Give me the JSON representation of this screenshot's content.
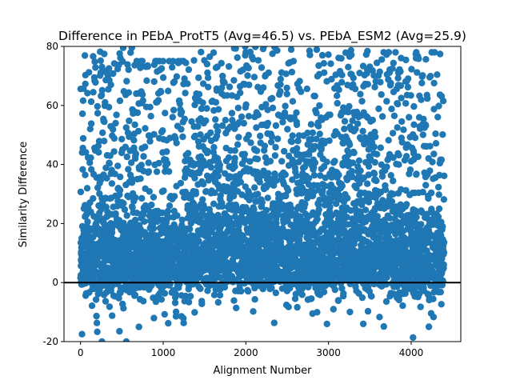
{
  "chart_data": {
    "type": "scatter",
    "title": "Difference in PEbA_ProtT5 (Avg=46.5) vs. PEbA_ESM2 (Avg=25.9)",
    "xlabel": "Alignment Number",
    "ylabel": "Similarity Difference",
    "xlim": [
      -200,
      4600
    ],
    "ylim": [
      -20,
      80
    ],
    "xticks": [
      0,
      1000,
      2000,
      3000,
      4000
    ],
    "yticks": [
      -20,
      0,
      20,
      40,
      60,
      80
    ],
    "grid": false,
    "legend": "none",
    "point_color": "#1f77b4",
    "reference_line": {
      "y": 0,
      "color": "#000000"
    },
    "n_points": 4400,
    "segments": [
      {
        "x_range": [
          0,
          650
        ],
        "mean": 14,
        "spread": 20,
        "min": -20,
        "max": 80
      },
      {
        "x_range": [
          650,
          1250
        ],
        "mean": 12,
        "spread": 18,
        "min": -15,
        "max": 75
      },
      {
        "x_range": [
          1250,
          2500
        ],
        "mean": 22,
        "spread": 20,
        "min": -16,
        "max": 80
      },
      {
        "x_range": [
          2500,
          3600
        ],
        "mean": 24,
        "spread": 24,
        "min": -14,
        "max": 80
      },
      {
        "x_range": [
          3600,
          4400
        ],
        "mean": 14,
        "spread": 20,
        "min": -20,
        "max": 78
      }
    ]
  }
}
